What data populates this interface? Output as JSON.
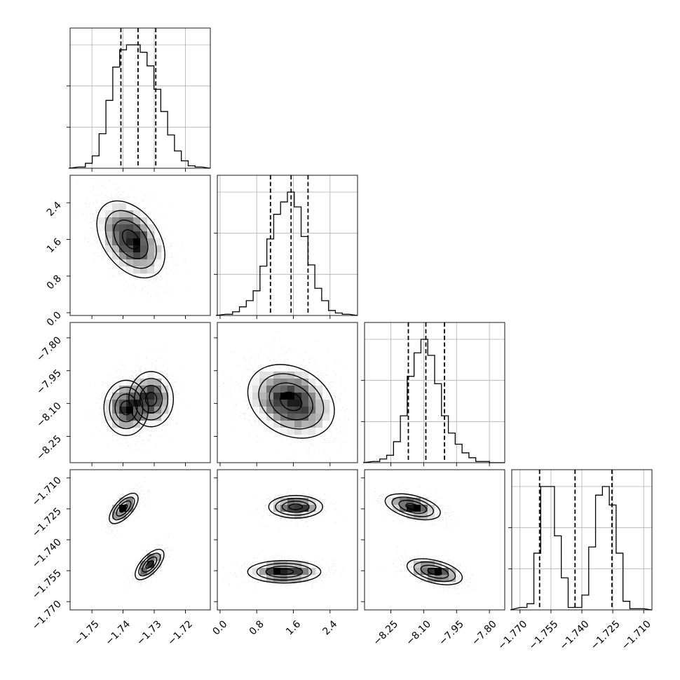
{
  "figure_type": "corner plot",
  "chart_data": {
    "type": "corner",
    "parameters": 4,
    "ranges": [
      [
        -1.757,
        -1.712
      ],
      [
        -0.06,
        3.0
      ],
      [
        -8.37,
        -7.73
      ],
      [
        -1.774,
        -1.706
      ]
    ],
    "histograms": [
      {
        "counts": [
          1,
          4,
          10,
          28,
          55,
          82,
          96,
          100,
          100,
          94,
          83,
          64,
          46,
          27,
          14,
          6,
          2,
          1
        ],
        "quantiles": [
          -1.7407,
          -1.7352,
          -1.7295
        ]
      },
      {
        "counts": [
          1,
          3,
          7,
          12,
          20,
          40,
          62,
          82,
          92,
          100,
          88,
          64,
          41,
          22,
          12,
          4,
          2,
          1
        ],
        "quantiles": [
          1.1,
          1.55,
          1.92
        ]
      },
      {
        "counts": [
          1,
          3,
          6,
          17,
          38,
          70,
          89,
          100,
          87,
          64,
          38,
          24,
          15,
          8,
          4,
          1,
          1,
          0
        ],
        "quantiles": [
          -8.17,
          -8.09,
          -8.005
        ]
      },
      {
        "counts": [
          2,
          5,
          46,
          100,
          100,
          60,
          26,
          2,
          2,
          12,
          51,
          93,
          100,
          85,
          46,
          7,
          1,
          1
        ],
        "quantiles": [
          -1.7605,
          -1.7433,
          -1.7254
        ]
      }
    ],
    "scatter": [
      {
        "i": 1,
        "j": 0,
        "blobs": [
          {
            "mean": [
              -1.7375,
              1.6
            ],
            "sd": [
              0.0052,
              0.4
            ],
            "rho": -0.4,
            "weight": 1.0
          }
        ]
      },
      {
        "i": 2,
        "j": 0,
        "blobs": [
          {
            "mean": [
              -1.739,
              -8.12
            ],
            "sd": [
              0.0034,
              0.06
            ],
            "rho": 0.0,
            "weight": 0.5
          },
          {
            "mean": [
              -1.731,
              -8.08
            ],
            "sd": [
              0.0034,
              0.06
            ],
            "rho": 0.0,
            "weight": 0.5
          }
        ]
      },
      {
        "i": 2,
        "j": 1,
        "blobs": [
          {
            "mean": [
              1.55,
              -8.09
            ],
            "sd": [
              0.45,
              0.08
            ],
            "rho": -0.25,
            "weight": 1.0
          }
        ]
      },
      {
        "i": 3,
        "j": 0,
        "blobs": [
          {
            "mean": [
              -1.7398,
              -1.7248
            ],
            "sd": [
              0.0022,
              0.0035
            ],
            "rho": 0.65,
            "weight": 0.5
          },
          {
            "mean": [
              -1.7315,
              -1.752
            ],
            "sd": [
              0.0022,
              0.0035
            ],
            "rho": 0.65,
            "weight": 0.5
          }
        ]
      },
      {
        "i": 3,
        "j": 1,
        "blobs": [
          {
            "mean": [
              1.65,
              -1.724
            ],
            "sd": [
              0.28,
              0.0026
            ],
            "rho": 0.0,
            "weight": 0.5
          },
          {
            "mean": [
              1.4,
              -1.7555
            ],
            "sd": [
              0.38,
              0.0026
            ],
            "rho": 0.0,
            "weight": 0.5
          }
        ]
      },
      {
        "i": 3,
        "j": 2,
        "blobs": [
          {
            "mean": [
              -8.15,
              -1.724
            ],
            "sd": [
              0.06,
              0.003
            ],
            "rho": -0.45,
            "weight": 0.5
          },
          {
            "mean": [
              -8.05,
              -1.7555
            ],
            "sd": [
              0.06,
              0.003
            ],
            "rho": -0.45,
            "weight": 0.5
          }
        ]
      }
    ],
    "contour_sigma_levels": [
      0.5,
      1.0,
      1.5,
      2.0
    ],
    "ticks": [
      {
        "values": [
          -1.75,
          -1.74,
          -1.73,
          -1.72
        ],
        "labels": [
          "−1.75",
          "−1.74",
          "−1.73",
          "−1.72"
        ]
      },
      {
        "values": [
          0.0,
          0.8,
          1.6,
          2.4
        ],
        "labels": [
          "0.0",
          "0.8",
          "1.6",
          "2.4"
        ]
      },
      {
        "values": [
          -8.25,
          -8.1,
          -7.95,
          -7.8
        ],
        "labels": [
          "−8.25",
          "−8.10",
          "−7.95",
          "−7.80"
        ]
      },
      {
        "values": [
          -1.77,
          -1.755,
          -1.74,
          -1.725,
          -1.71
        ],
        "labels": [
          "−1.770",
          "−1.755",
          "−1.740",
          "−1.725",
          "−1.710"
        ]
      }
    ],
    "grid": true,
    "xlabel": "",
    "ylabel": "",
    "title": ""
  },
  "colors": {
    "line": "#000000",
    "grid": "#b0b0b0",
    "background": "#ffffff",
    "point": "#8c8c8c"
  }
}
